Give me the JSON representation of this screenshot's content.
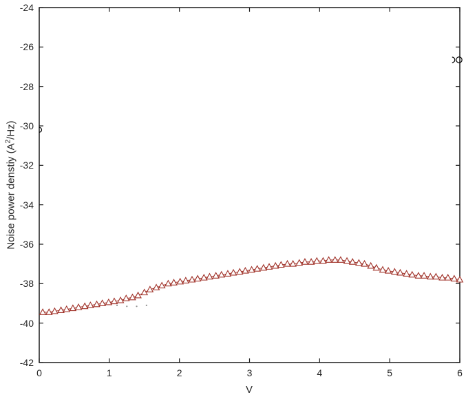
{
  "figure": {
    "background": "#ffffff",
    "axis_color": "#1c1c1c",
    "text_color": "#262626"
  },
  "chart_data": {
    "type": "scatter",
    "title": "",
    "xlabel": "V",
    "ylabel": "Noise power denstiy (A2/Hz)",
    "ylabel_parts": {
      "pre": "Noise power denstiy (A",
      "sup": "2",
      "post": "/Hz)"
    },
    "xlim": [
      0,
      6
    ],
    "ylim": [
      -42,
      -24
    ],
    "xticks": [
      0,
      1,
      2,
      3,
      4,
      5,
      6
    ],
    "yticks": [
      -42,
      -40,
      -38,
      -36,
      -34,
      -32,
      -30,
      -28,
      -26,
      -24
    ],
    "grid": false,
    "legend": null,
    "box": true,
    "series": [
      {
        "name": "noise-power-density-curve",
        "marker": "triangle-up-open",
        "line": true,
        "color": "#a03229",
        "marker_fill": "#ffffff",
        "points": [
          [
            0.05,
            -39.45
          ],
          [
            0.14,
            -39.45
          ],
          [
            0.22,
            -39.4
          ],
          [
            0.31,
            -39.35
          ],
          [
            0.39,
            -39.3
          ],
          [
            0.48,
            -39.25
          ],
          [
            0.56,
            -39.2
          ],
          [
            0.65,
            -39.15
          ],
          [
            0.73,
            -39.1
          ],
          [
            0.82,
            -39.05
          ],
          [
            0.9,
            -39.0
          ],
          [
            0.99,
            -38.95
          ],
          [
            1.07,
            -38.9
          ],
          [
            1.16,
            -38.85
          ],
          [
            1.24,
            -38.75
          ],
          [
            1.33,
            -38.7
          ],
          [
            1.41,
            -38.6
          ],
          [
            1.5,
            -38.45
          ],
          [
            1.58,
            -38.3
          ],
          [
            1.67,
            -38.2
          ],
          [
            1.75,
            -38.1
          ],
          [
            1.84,
            -38.0
          ],
          [
            1.92,
            -37.95
          ],
          [
            2.01,
            -37.9
          ],
          [
            2.09,
            -37.85
          ],
          [
            2.18,
            -37.8
          ],
          [
            2.26,
            -37.75
          ],
          [
            2.35,
            -37.7
          ],
          [
            2.43,
            -37.65
          ],
          [
            2.52,
            -37.6
          ],
          [
            2.6,
            -37.55
          ],
          [
            2.69,
            -37.5
          ],
          [
            2.77,
            -37.45
          ],
          [
            2.86,
            -37.4
          ],
          [
            2.94,
            -37.35
          ],
          [
            3.03,
            -37.3
          ],
          [
            3.11,
            -37.25
          ],
          [
            3.2,
            -37.2
          ],
          [
            3.28,
            -37.15
          ],
          [
            3.37,
            -37.1
          ],
          [
            3.45,
            -37.05
          ],
          [
            3.54,
            -37.0
          ],
          [
            3.62,
            -37.0
          ],
          [
            3.71,
            -36.95
          ],
          [
            3.79,
            -36.9
          ],
          [
            3.88,
            -36.9
          ],
          [
            3.96,
            -36.85
          ],
          [
            4.05,
            -36.85
          ],
          [
            4.13,
            -36.8
          ],
          [
            4.22,
            -36.8
          ],
          [
            4.3,
            -36.8
          ],
          [
            4.39,
            -36.85
          ],
          [
            4.47,
            -36.9
          ],
          [
            4.56,
            -36.95
          ],
          [
            4.64,
            -37.0
          ],
          [
            4.73,
            -37.1
          ],
          [
            4.81,
            -37.2
          ],
          [
            4.9,
            -37.3
          ],
          [
            4.98,
            -37.35
          ],
          [
            5.07,
            -37.4
          ],
          [
            5.15,
            -37.45
          ],
          [
            5.24,
            -37.5
          ],
          [
            5.32,
            -37.55
          ],
          [
            5.41,
            -37.6
          ],
          [
            5.49,
            -37.6
          ],
          [
            5.58,
            -37.65
          ],
          [
            5.66,
            -37.65
          ],
          [
            5.75,
            -37.7
          ],
          [
            5.83,
            -37.7
          ],
          [
            5.92,
            -37.75
          ],
          [
            6.0,
            -37.8
          ]
        ]
      },
      {
        "name": "outlier-circles",
        "marker": "circle-open",
        "line": false,
        "color": "#000000",
        "points": [
          {
            "x": 5.89,
            "y": -26.65,
            "shape": "right-arc",
            "r": 4
          },
          {
            "x": 5.99,
            "y": -26.65,
            "shape": "circle",
            "r": 4.2
          },
          {
            "x": 0.0,
            "y": -30.2,
            "shape": "right-arc",
            "r": 3.5
          }
        ]
      },
      {
        "name": "faint-dots",
        "marker": "dot",
        "line": false,
        "color": "#8f8f8f",
        "points": [
          [
            1.11,
            -39.1
          ],
          [
            1.25,
            -39.15
          ],
          [
            1.39,
            -39.15
          ],
          [
            1.53,
            -39.1
          ]
        ]
      }
    ]
  }
}
